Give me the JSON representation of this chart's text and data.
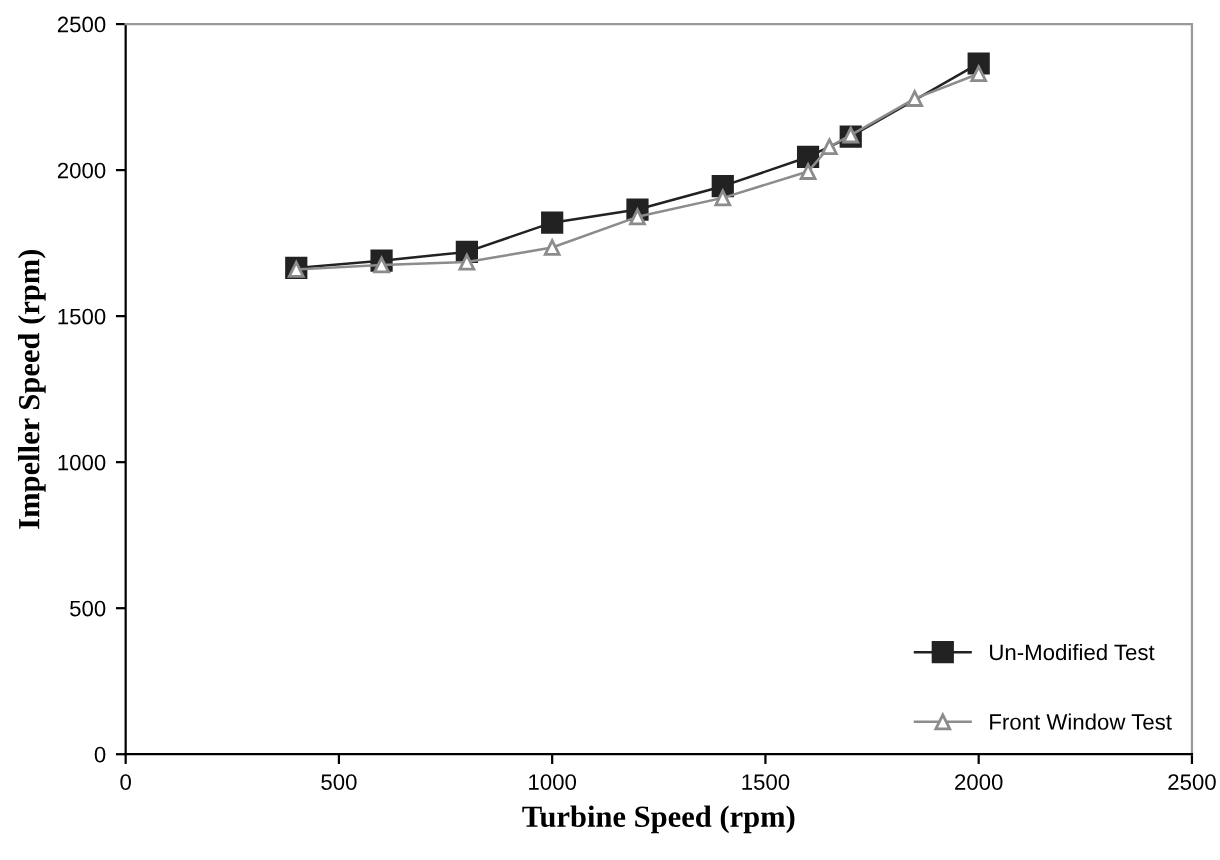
{
  "chart_data": {
    "type": "line",
    "xlabel": "Turbine Speed (rpm)",
    "ylabel": "Impeller Speed (rpm)",
    "xlim": [
      0,
      2500
    ],
    "xticks": [
      0,
      500,
      1000,
      1500,
      2000,
      2500
    ],
    "ylim": [
      0,
      2500
    ],
    "yticks": [
      0,
      500,
      1000,
      1500,
      2000,
      2500
    ],
    "grid": false,
    "legend": "bottom right",
    "line_style": "solid",
    "series": [
      {
        "name": "Un-Modified Test",
        "color": "#222222",
        "marker": "square",
        "x": [
          400,
          600,
          800,
          1000,
          1200,
          1400,
          1600,
          1700,
          2000
        ],
        "values": [
          1665,
          1690,
          1720,
          1820,
          1865,
          1945,
          2045,
          2115,
          2365
        ]
      },
      {
        "name": "Front Window Test",
        "color": "#8c8c8c",
        "marker": "triangle",
        "x": [
          400,
          600,
          800,
          1000,
          1200,
          1400,
          1600,
          1650,
          1700,
          1850,
          2000
        ],
        "values": [
          1660,
          1675,
          1685,
          1735,
          1840,
          1905,
          1995,
          2080,
          2120,
          2245,
          2330
        ]
      }
    ]
  }
}
